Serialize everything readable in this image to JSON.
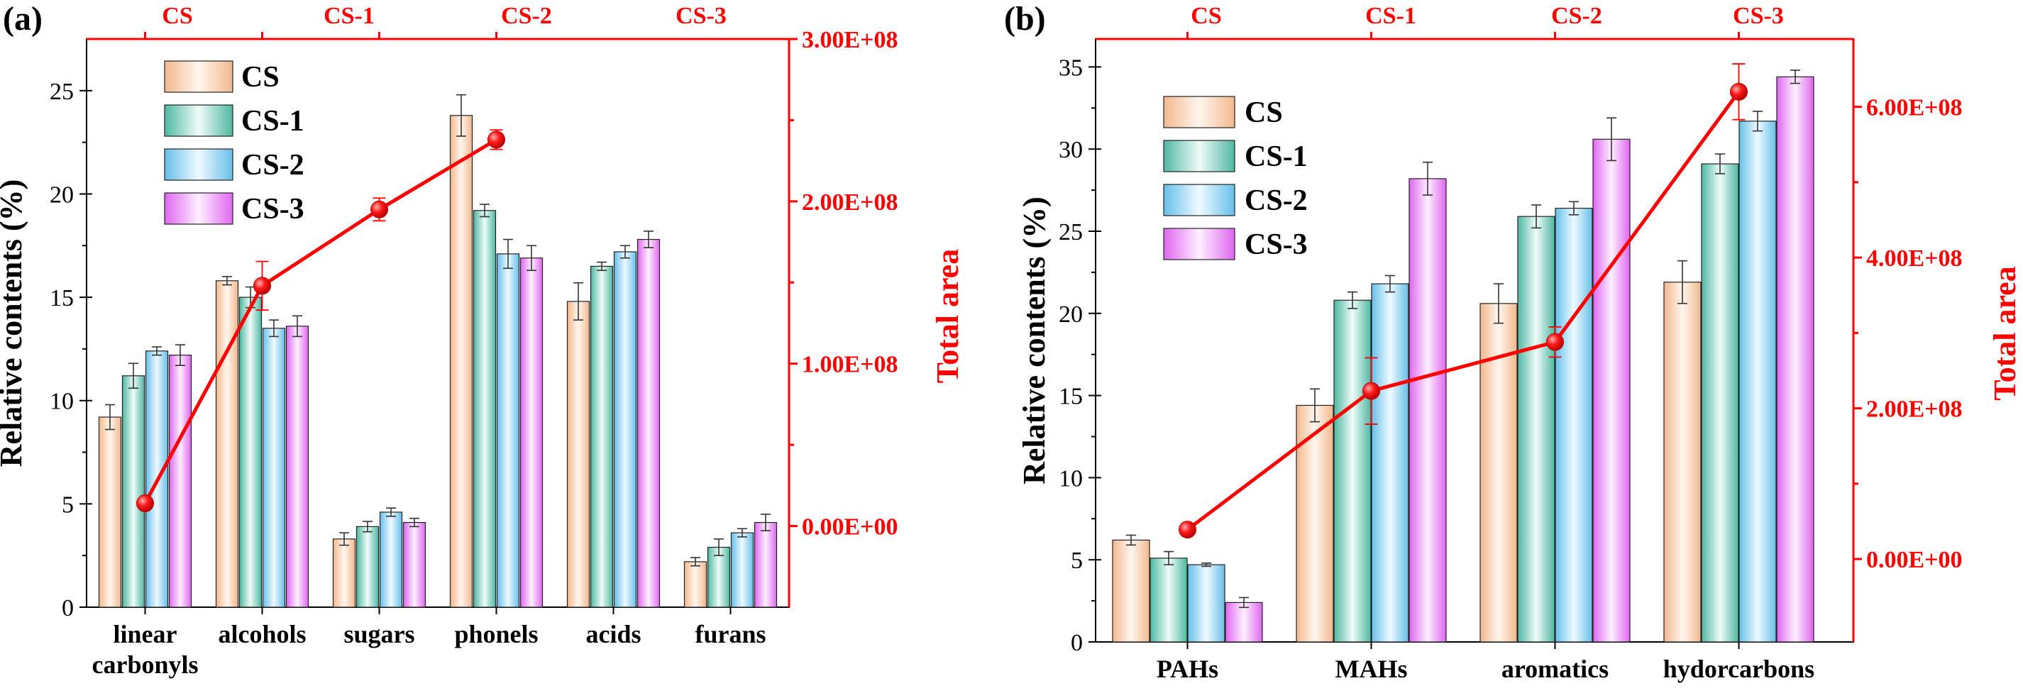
{
  "colors": {
    "CS": "#f4c7a4",
    "CS-1": "#7fcfbd",
    "CS-2": "#8fd2f2",
    "CS-3": "#e888f4",
    "line": "#ff0000"
  },
  "chart_data": [
    {
      "type": "bar",
      "panel_label": "(a)",
      "categories": [
        "linear carbonyls",
        "alcohols",
        "sugars",
        "phonels",
        "acids",
        "furans"
      ],
      "category_lines": [
        [
          "linear",
          "carbonyls"
        ],
        [
          "alcohols"
        ],
        [
          "sugars"
        ],
        [
          "phonels"
        ],
        [
          "acids"
        ],
        [
          "furans"
        ]
      ],
      "series": [
        {
          "name": "CS",
          "values": [
            9.2,
            15.8,
            3.3,
            23.8,
            14.8,
            2.2
          ],
          "errors": [
            0.6,
            0.2,
            0.3,
            1.0,
            0.9,
            0.2
          ]
        },
        {
          "name": "CS-1",
          "values": [
            11.2,
            15.0,
            3.9,
            19.2,
            16.5,
            2.9
          ],
          "errors": [
            0.6,
            0.5,
            0.25,
            0.3,
            0.2,
            0.4
          ]
        },
        {
          "name": "CS-2",
          "values": [
            12.4,
            13.5,
            4.6,
            17.1,
            17.2,
            3.6
          ],
          "errors": [
            0.2,
            0.4,
            0.2,
            0.7,
            0.3,
            0.2
          ]
        },
        {
          "name": "CS-3",
          "values": [
            12.2,
            13.6,
            4.1,
            16.9,
            17.8,
            4.1
          ],
          "errors": [
            0.5,
            0.5,
            0.2,
            0.6,
            0.4,
            0.4
          ]
        }
      ],
      "ylabel": "Relative contents (%)",
      "ylim": [
        0,
        27.5
      ],
      "yticks": [
        "0",
        "5",
        "10",
        "15",
        "20",
        "25"
      ],
      "yticks_values": [
        0,
        5,
        10,
        15,
        20,
        25
      ],
      "y2label": "Total area",
      "y2lim": [
        -50000000.0,
        300000000.0
      ],
      "y2ticks": [
        "0.00E+00",
        "1.00E+08",
        "2.00E+08",
        "3.00E+08"
      ],
      "y2ticks_values": [
        0,
        100000000.0,
        200000000.0,
        300000000.0
      ],
      "top_labels": [
        "CS",
        "CS-1",
        "CS-2",
        "CS-3"
      ],
      "line": {
        "name": "Total area",
        "x_positions": [
          0.5,
          1.5,
          2.5,
          3.5
        ],
        "values": [
          14000000.0,
          148000000.0,
          195000000.0,
          238000000.0
        ],
        "errors": [
          2000000.0,
          15000000.0,
          7000000.0,
          6000000.0
        ]
      }
    },
    {
      "type": "bar",
      "panel_label": "(b)",
      "categories": [
        "PAHs",
        "MAHs",
        "aromatics",
        "hydorcarbons"
      ],
      "category_lines": [
        [
          "PAHs"
        ],
        [
          "MAHs"
        ],
        [
          "aromatics"
        ],
        [
          "hydorcarbons"
        ]
      ],
      "series": [
        {
          "name": "CS",
          "values": [
            6.2,
            14.4,
            20.6,
            21.9
          ],
          "errors": [
            0.3,
            1.0,
            1.2,
            1.3
          ]
        },
        {
          "name": "CS-1",
          "values": [
            5.1,
            20.8,
            25.9,
            29.1
          ],
          "errors": [
            0.4,
            0.5,
            0.7,
            0.6
          ]
        },
        {
          "name": "CS-2",
          "values": [
            4.7,
            21.8,
            26.4,
            31.7
          ],
          "errors": [
            0.1,
            0.5,
            0.4,
            0.6
          ]
        },
        {
          "name": "CS-3",
          "values": [
            2.4,
            28.2,
            30.6,
            34.4
          ],
          "errors": [
            0.3,
            1.0,
            1.3,
            0.4
          ]
        }
      ],
      "ylabel": "Relative contents (%)",
      "ylim": [
        0,
        36.7
      ],
      "yticks": [
        "0",
        "5",
        "10",
        "15",
        "20",
        "25",
        "30",
        "35"
      ],
      "yticks_values": [
        0,
        5,
        10,
        15,
        20,
        25,
        30,
        35
      ],
      "y2label": "Total area",
      "y2lim": [
        -110000000.0,
        690000000.0
      ],
      "y2ticks": [
        "0.00E+00",
        "2.00E+08",
        "4.00E+08",
        "6.00E+08"
      ],
      "y2ticks_values": [
        0,
        200000000.0,
        400000000.0,
        600000000.0
      ],
      "top_labels": [
        "CS",
        "CS-1",
        "CS-2",
        "CS-3"
      ],
      "line": {
        "name": "Total area",
        "x_positions": [
          0.5,
          1.5,
          2.5,
          3.5
        ],
        "values": [
          39000000.0,
          223000000.0,
          288000000.0,
          620000000.0
        ],
        "errors": [
          2000000.0,
          44000000.0,
          20000000.0,
          37000000.0
        ]
      }
    }
  ]
}
